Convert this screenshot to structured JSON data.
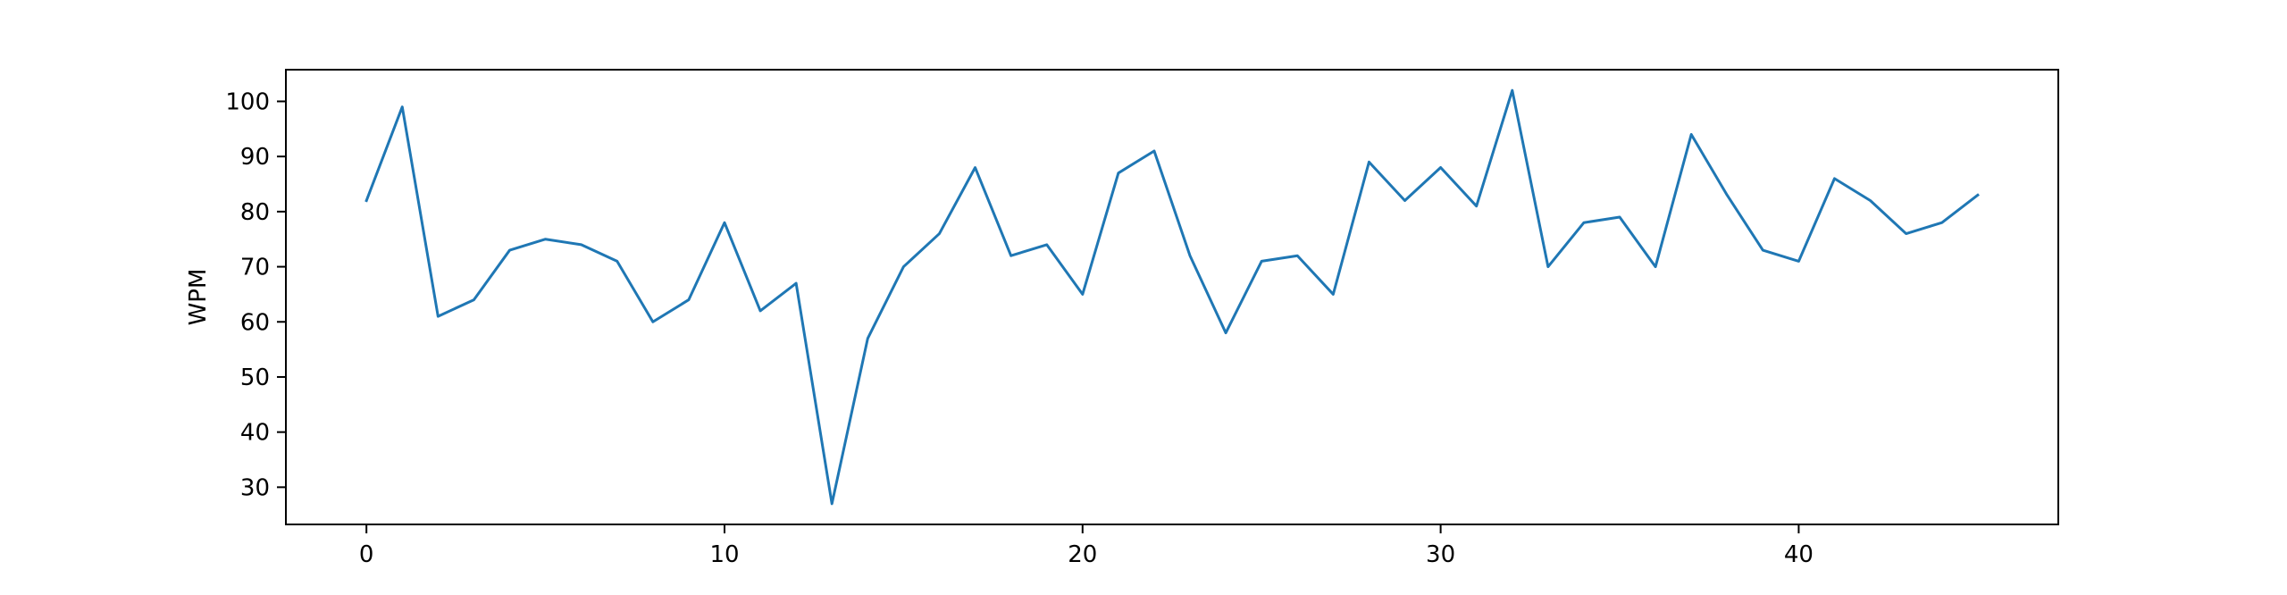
{
  "chart_data": {
    "type": "line",
    "title": "",
    "xlabel": "",
    "ylabel": "WPM",
    "xlim": [
      -2.25,
      47.25
    ],
    "ylim": [
      23.25,
      105.75
    ],
    "x_ticks": [
      0,
      10,
      20,
      30,
      40
    ],
    "y_ticks": [
      30,
      40,
      50,
      60,
      70,
      80,
      90,
      100
    ],
    "grid": false,
    "legend": "none",
    "series": [
      {
        "color": "#1f77b4",
        "x": [
          0,
          1,
          2,
          3,
          4,
          5,
          6,
          7,
          8,
          9,
          10,
          11,
          12,
          13,
          14,
          15,
          16,
          17,
          18,
          19,
          20,
          21,
          22,
          23,
          24,
          25,
          26,
          27,
          28,
          29,
          30,
          31,
          32,
          33,
          34,
          35,
          36,
          37,
          38,
          39,
          40,
          41,
          42,
          43,
          44,
          45
        ],
        "values": [
          82,
          99,
          61,
          64,
          73,
          75,
          74,
          71,
          60,
          64,
          78,
          62,
          67,
          27,
          57,
          70,
          76,
          88,
          72,
          74,
          65,
          87,
          91,
          72,
          58,
          71,
          72,
          65,
          89,
          82,
          88,
          81,
          102,
          70,
          78,
          79,
          70,
          94,
          83,
          73,
          71,
          86,
          82,
          76,
          78,
          83
        ]
      }
    ]
  }
}
